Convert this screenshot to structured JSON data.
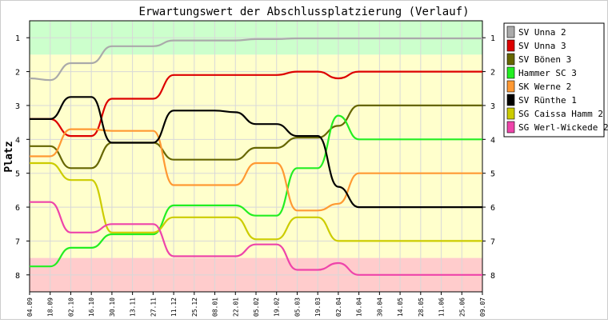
{
  "chart_data": {
    "type": "line",
    "title": "Erwartungswert der Abschlussplatzierung (Verlauf)",
    "ylabel": "Platz",
    "xlabel": "",
    "ylim": [
      0.5,
      8.5
    ],
    "y_reversed": true,
    "y_ticks": [
      1,
      2,
      3,
      4,
      5,
      6,
      7,
      8
    ],
    "grid": true,
    "legend_position": "right",
    "x": [
      "04.09",
      "18.09",
      "02.10",
      "16.10",
      "30.10",
      "13.11",
      "27.11",
      "11.12",
      "25.12",
      "08.01",
      "22.01",
      "05.02",
      "19.02",
      "05.03",
      "19.03",
      "02.04",
      "16.04",
      "30.04",
      "14.05",
      "28.05",
      "11.06",
      "25.06",
      "09.07"
    ],
    "background_bands": [
      {
        "from": 0.5,
        "to": 1.5,
        "color": "#ccffcc"
      },
      {
        "from": 1.5,
        "to": 7.5,
        "color": "#ffffcc"
      },
      {
        "from": 7.5,
        "to": 8.5,
        "color": "#ffcccc"
      }
    ],
    "series": [
      {
        "name": "SV Unna 2",
        "color": "#aaaaaa",
        "values": [
          2.2,
          2.25,
          1.75,
          1.75,
          1.25,
          1.25,
          1.25,
          1.08,
          1.08,
          1.08,
          1.08,
          1.04,
          1.04,
          1.02,
          1.02,
          1.02,
          1.02,
          1.02,
          1.02,
          1.02,
          1.02,
          1.02,
          1.02
        ]
      },
      {
        "name": "SV Unna 3",
        "color": "#dd0000",
        "values": [
          3.4,
          3.4,
          3.9,
          3.9,
          2.8,
          2.8,
          2.8,
          2.1,
          2.1,
          2.1,
          2.1,
          2.1,
          2.1,
          2.0,
          2.0,
          2.2,
          2.0,
          2.0,
          2.0,
          2.0,
          2.0,
          2.0,
          2.0
        ]
      },
      {
        "name": "SV Bönen 3",
        "color": "#666600",
        "values": [
          4.2,
          4.2,
          4.85,
          4.85,
          4.1,
          4.1,
          4.1,
          4.6,
          4.6,
          4.6,
          4.6,
          4.25,
          4.25,
          3.95,
          3.95,
          3.6,
          3.0,
          3.0,
          3.0,
          3.0,
          3.0,
          3.0,
          3.0
        ]
      },
      {
        "name": "Hammer SC 3",
        "color": "#22ee22",
        "values": [
          7.75,
          7.75,
          7.2,
          7.2,
          6.8,
          6.8,
          6.8,
          5.95,
          5.95,
          5.95,
          5.95,
          6.25,
          6.25,
          4.85,
          4.85,
          3.3,
          4.0,
          4.0,
          4.0,
          4.0,
          4.0,
          4.0,
          4.0
        ]
      },
      {
        "name": "SK Werne 2",
        "color": "#ff9933",
        "values": [
          4.5,
          4.5,
          3.7,
          3.7,
          3.75,
          3.75,
          3.75,
          5.35,
          5.35,
          5.35,
          5.35,
          4.7,
          4.7,
          6.1,
          6.1,
          5.9,
          5.0,
          5.0,
          5.0,
          5.0,
          5.0,
          5.0,
          5.0
        ]
      },
      {
        "name": "SV Rünthe 1",
        "color": "#000000",
        "values": [
          3.4,
          3.4,
          2.75,
          2.75,
          4.1,
          4.1,
          4.1,
          3.15,
          3.15,
          3.15,
          3.2,
          3.55,
          3.55,
          3.9,
          3.9,
          5.4,
          6.0,
          6.0,
          6.0,
          6.0,
          6.0,
          6.0,
          6.0
        ]
      },
      {
        "name": "SG Caissa Hamm 2",
        "color": "#cccc00",
        "values": [
          4.7,
          4.7,
          5.2,
          5.2,
          6.75,
          6.75,
          6.75,
          6.3,
          6.3,
          6.3,
          6.3,
          6.95,
          6.95,
          6.3,
          6.3,
          7.0,
          7.0,
          7.0,
          7.0,
          7.0,
          7.0,
          7.0,
          7.0
        ]
      },
      {
        "name": "SG Werl-Wickede 2",
        "color": "#ee44aa",
        "values": [
          5.85,
          5.85,
          6.75,
          6.75,
          6.5,
          6.5,
          6.5,
          7.45,
          7.45,
          7.45,
          7.45,
          7.1,
          7.1,
          7.85,
          7.85,
          7.65,
          8.0,
          8.0,
          8.0,
          8.0,
          8.0,
          8.0,
          8.0
        ]
      }
    ]
  }
}
